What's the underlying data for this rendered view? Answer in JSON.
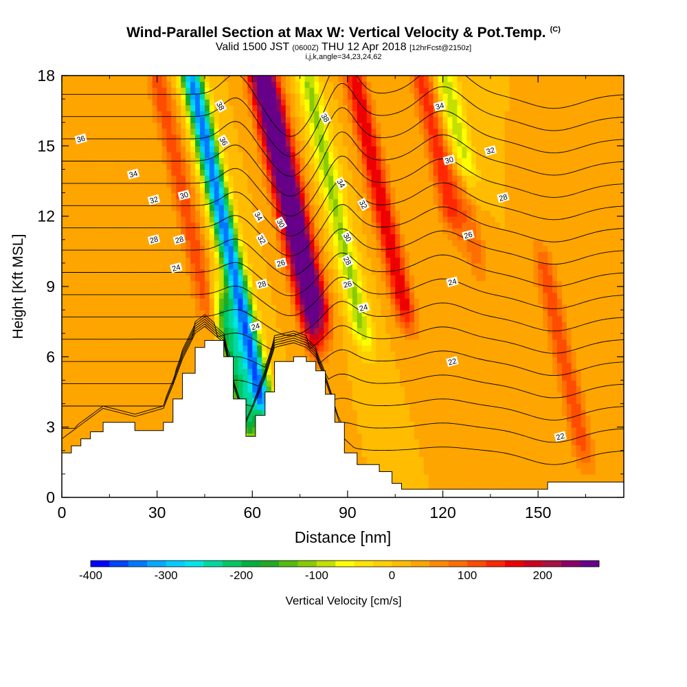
{
  "title": {
    "main": "Wind-Parallel Section at Max W: Vertical Velocity & Pot.Temp.",
    "copyright": "(C)",
    "valid_prefix": "Valid 1500 JST",
    "valid_utc": "(0600Z)",
    "valid_date": "THU 12 Apr 2018",
    "forecast": "[12hrFcst@2150z]",
    "indices": "i,j,k,angle=34,23,24,62"
  },
  "chart_data": {
    "type": "heatmap",
    "xlabel": "Distance [nm]",
    "ylabel": "Height [Kft MSL]",
    "xlim": [
      0,
      177
    ],
    "ylim": [
      0,
      18
    ],
    "x_ticks": [
      0,
      30,
      60,
      90,
      120,
      150
    ],
    "y_ticks": [
      0,
      3,
      6,
      9,
      12,
      15,
      18
    ],
    "colorbar": {
      "label": "Vertical Velocity [cm/s]",
      "min": -400,
      "max": 275,
      "step": 25,
      "tick_labels": [
        -400,
        -300,
        -200,
        -100,
        0,
        100,
        200
      ],
      "colors": [
        "#0000ff",
        "#0044ff",
        "#0077ff",
        "#00aaff",
        "#00ccff",
        "#00e5e5",
        "#00d8a0",
        "#00c864",
        "#00b040",
        "#22aa22",
        "#55bb11",
        "#88cc00",
        "#c4e000",
        "#ffff00",
        "#ffe400",
        "#ffd000",
        "#ffbc00",
        "#ffa500",
        "#ff8a00",
        "#ff6e00",
        "#ff4c00",
        "#ff2800",
        "#ee0000",
        "#cc0022",
        "#aa1144",
        "#8a0066",
        "#660088"
      ]
    },
    "velocity_field": [
      {
        "x": 20,
        "y_range": [
          0,
          18
        ],
        "w": 20
      },
      {
        "x": 38,
        "y_range": [
          8,
          18
        ],
        "w": 90
      },
      {
        "x": 52,
        "y_range": [
          4,
          18
        ],
        "w": -370
      },
      {
        "x": 55,
        "y_range": [
          3,
          8
        ],
        "w": -220
      },
      {
        "x": 70,
        "y_range": [
          7,
          18
        ],
        "w": 190
      },
      {
        "x": 73,
        "y_range": [
          8,
          18
        ],
        "w": 220
      },
      {
        "x": 86,
        "y_range": [
          7,
          18
        ],
        "w": -130
      },
      {
        "x": 100,
        "y_range": [
          8,
          18
        ],
        "w": 150
      },
      {
        "x": 118,
        "y_range": [
          12,
          18
        ],
        "w": 110
      },
      {
        "x": 124,
        "y_range": [
          14,
          18
        ],
        "w": -120
      },
      {
        "x": 128,
        "y_range": [
          10,
          14
        ],
        "w": 60
      },
      {
        "x": 158,
        "y_range": [
          2,
          10
        ],
        "w": 90
      }
    ],
    "theta_contours": {
      "levels": [
        22,
        23,
        24,
        25,
        26,
        27,
        28,
        29,
        30,
        31,
        32,
        33,
        34,
        35,
        36,
        37,
        38
      ],
      "labels": [
        {
          "text": "36",
          "x": 6,
          "y": 15.3
        },
        {
          "text": "34",
          "x": 22.5,
          "y": 13.8
        },
        {
          "text": "32",
          "x": 29,
          "y": 12.7
        },
        {
          "text": "30",
          "x": 38.5,
          "y": 12.9
        },
        {
          "text": "28",
          "x": 29,
          "y": 11.0
        },
        {
          "text": "28",
          "x": 37,
          "y": 11.0
        },
        {
          "text": "24",
          "x": 36,
          "y": 9.8
        },
        {
          "text": "38",
          "x": 50,
          "y": 16.7
        },
        {
          "text": "36",
          "x": 51,
          "y": 15.2
        },
        {
          "text": "34",
          "x": 62,
          "y": 12.0
        },
        {
          "text": "32",
          "x": 63,
          "y": 11.0
        },
        {
          "text": "30",
          "x": 69,
          "y": 11.7
        },
        {
          "text": "28",
          "x": 63,
          "y": 9.1
        },
        {
          "text": "26",
          "x": 69,
          "y": 10.0
        },
        {
          "text": "24",
          "x": 61,
          "y": 7.3
        },
        {
          "text": "38",
          "x": 83,
          "y": 16.2
        },
        {
          "text": "34",
          "x": 88,
          "y": 13.4
        },
        {
          "text": "32",
          "x": 95,
          "y": 12.5
        },
        {
          "text": "30",
          "x": 90,
          "y": 11.1
        },
        {
          "text": "28",
          "x": 90,
          "y": 10.1
        },
        {
          "text": "26",
          "x": 90,
          "y": 9.1
        },
        {
          "text": "24",
          "x": 95,
          "y": 8.1
        },
        {
          "text": "34",
          "x": 119,
          "y": 16.7
        },
        {
          "text": "32",
          "x": 135,
          "y": 14.8
        },
        {
          "text": "30",
          "x": 122,
          "y": 14.4
        },
        {
          "text": "28",
          "x": 139,
          "y": 12.8
        },
        {
          "text": "26",
          "x": 128,
          "y": 11.2
        },
        {
          "text": "24",
          "x": 123,
          "y": 9.2
        },
        {
          "text": "22",
          "x": 123,
          "y": 5.8
        },
        {
          "text": "22",
          "x": 157,
          "y": 2.6
        }
      ]
    },
    "terrain": [
      [
        0,
        1.9
      ],
      [
        3,
        2.2
      ],
      [
        6,
        2.5
      ],
      [
        9,
        2.8
      ],
      [
        13,
        3.2
      ],
      [
        23,
        2.85
      ],
      [
        32,
        3.2
      ],
      [
        35,
        4.2
      ],
      [
        38,
        5.3
      ],
      [
        42,
        6.4
      ],
      [
        45,
        6.7
      ],
      [
        51,
        6.0
      ],
      [
        54,
        4.2
      ],
      [
        58,
        2.6
      ],
      [
        61,
        3.5
      ],
      [
        64,
        4.5
      ],
      [
        67,
        5.8
      ],
      [
        73,
        6.0
      ],
      [
        77,
        5.8
      ],
      [
        80,
        5.4
      ],
      [
        83,
        4.4
      ],
      [
        86,
        3.2
      ],
      [
        89,
        1.9
      ],
      [
        93,
        1.4
      ],
      [
        100,
        1.1
      ],
      [
        104,
        0.6
      ],
      [
        107,
        0.35
      ],
      [
        150,
        0.35
      ],
      [
        153,
        0.65
      ],
      [
        177,
        0.65
      ]
    ]
  }
}
